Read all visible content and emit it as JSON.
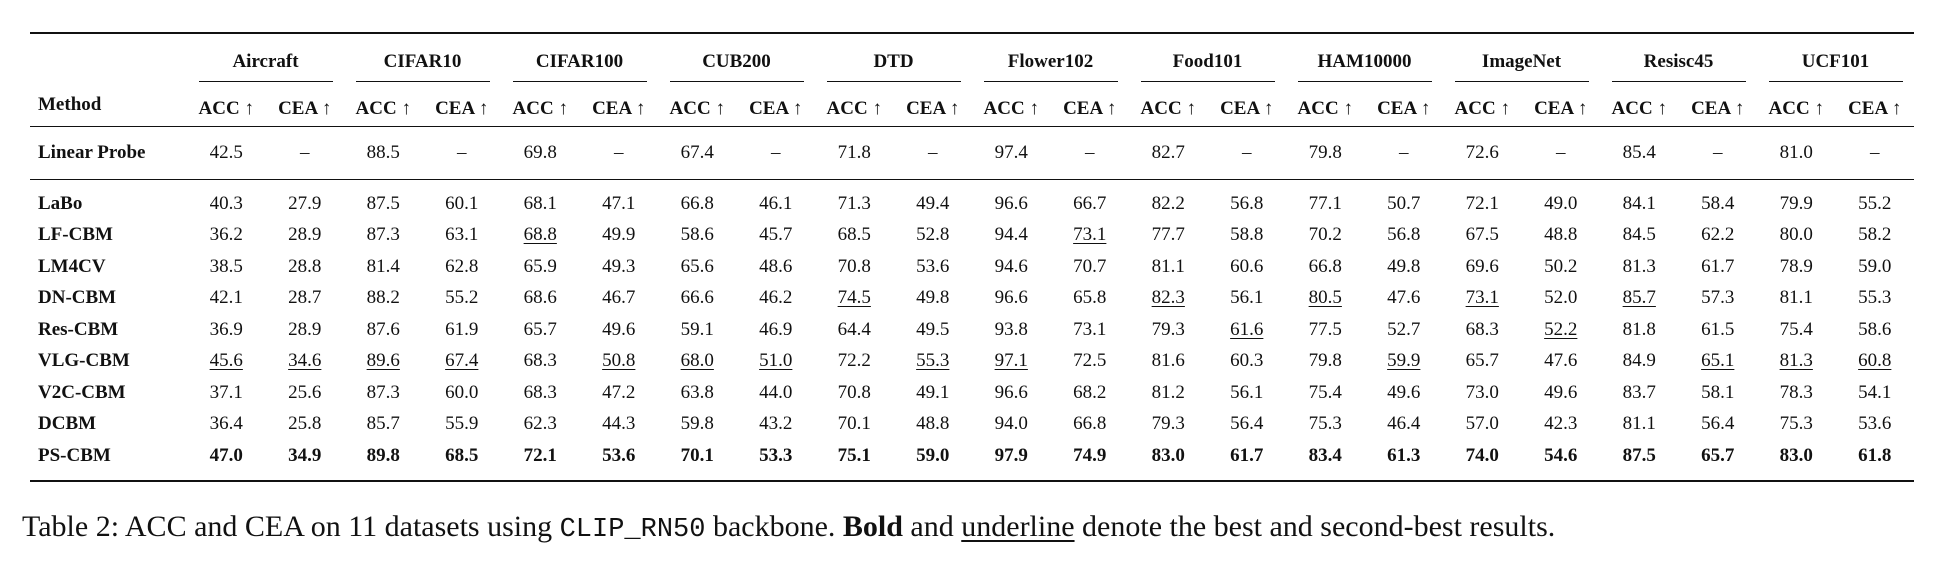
{
  "table": {
    "method_header": "Method",
    "datasets": [
      "Aircraft",
      "CIFAR10",
      "CIFAR100",
      "CUB200",
      "DTD",
      "Flower102",
      "Food101",
      "HAM10000",
      "ImageNet",
      "Resisc45",
      "UCF101"
    ],
    "metrics": [
      "ACC ↑",
      "CEA ↑"
    ],
    "baseline": {
      "method": "Linear Probe",
      "values": [
        "42.5",
        "–",
        "88.5",
        "–",
        "69.8",
        "–",
        "67.4",
        "–",
        "71.8",
        "–",
        "97.4",
        "–",
        "82.7",
        "–",
        "79.8",
        "–",
        "72.6",
        "–",
        "85.4",
        "–",
        "81.0",
        "–"
      ]
    },
    "rows": [
      {
        "method": "LaBo",
        "values": [
          "40.3",
          "27.9",
          "87.5",
          "60.1",
          "68.1",
          "47.1",
          "66.8",
          "46.1",
          "71.3",
          "49.4",
          "96.6",
          "66.7",
          "82.2",
          "56.8",
          "77.1",
          "50.7",
          "72.1",
          "49.0",
          "84.1",
          "58.4",
          "79.9",
          "55.2"
        ],
        "underline": []
      },
      {
        "method": "LF-CBM",
        "values": [
          "36.2",
          "28.9",
          "87.3",
          "63.1",
          "68.8",
          "49.9",
          "58.6",
          "45.7",
          "68.5",
          "52.8",
          "94.4",
          "73.1",
          "77.7",
          "58.8",
          "70.2",
          "56.8",
          "67.5",
          "48.8",
          "84.5",
          "62.2",
          "80.0",
          "58.2"
        ],
        "underline": [
          4,
          11
        ]
      },
      {
        "method": "LM4CV",
        "values": [
          "38.5",
          "28.8",
          "81.4",
          "62.8",
          "65.9",
          "49.3",
          "65.6",
          "48.6",
          "70.8",
          "53.6",
          "94.6",
          "70.7",
          "81.1",
          "60.6",
          "66.8",
          "49.8",
          "69.6",
          "50.2",
          "81.3",
          "61.7",
          "78.9",
          "59.0"
        ],
        "underline": []
      },
      {
        "method": "DN-CBM",
        "values": [
          "42.1",
          "28.7",
          "88.2",
          "55.2",
          "68.6",
          "46.7",
          "66.6",
          "46.2",
          "74.5",
          "49.8",
          "96.6",
          "65.8",
          "82.3",
          "56.1",
          "80.5",
          "47.6",
          "73.1",
          "52.0",
          "85.7",
          "57.3",
          "81.1",
          "55.3"
        ],
        "underline": [
          8,
          12,
          14,
          16,
          18
        ]
      },
      {
        "method": "Res-CBM",
        "values": [
          "36.9",
          "28.9",
          "87.6",
          "61.9",
          "65.7",
          "49.6",
          "59.1",
          "46.9",
          "64.4",
          "49.5",
          "93.8",
          "73.1",
          "79.3",
          "61.6",
          "77.5",
          "52.7",
          "68.3",
          "52.2",
          "81.8",
          "61.5",
          "75.4",
          "58.6"
        ],
        "underline": [
          13,
          17
        ]
      },
      {
        "method": "VLG-CBM",
        "values": [
          "45.6",
          "34.6",
          "89.6",
          "67.4",
          "68.3",
          "50.8",
          "68.0",
          "51.0",
          "72.2",
          "55.3",
          "97.1",
          "72.5",
          "81.6",
          "60.3",
          "79.8",
          "59.9",
          "65.7",
          "47.6",
          "84.9",
          "65.1",
          "81.3",
          "60.8"
        ],
        "underline": [
          0,
          1,
          2,
          3,
          5,
          6,
          7,
          9,
          10,
          15,
          19,
          20,
          21
        ]
      },
      {
        "method": "V2C-CBM",
        "values": [
          "37.1",
          "25.6",
          "87.3",
          "60.0",
          "68.3",
          "47.2",
          "63.8",
          "44.0",
          "70.8",
          "49.1",
          "96.6",
          "68.2",
          "81.2",
          "56.1",
          "75.4",
          "49.6",
          "73.0",
          "49.6",
          "83.7",
          "58.1",
          "78.3",
          "54.1"
        ],
        "underline": []
      },
      {
        "method": "DCBM",
        "values": [
          "36.4",
          "25.8",
          "85.7",
          "55.9",
          "62.3",
          "44.3",
          "59.8",
          "43.2",
          "70.1",
          "48.8",
          "94.0",
          "66.8",
          "79.3",
          "56.4",
          "75.3",
          "46.4",
          "57.0",
          "42.3",
          "81.1",
          "56.4",
          "75.3",
          "53.6"
        ],
        "underline": []
      }
    ],
    "best": {
      "method": "PS-CBM",
      "values": [
        "47.0",
        "34.9",
        "89.8",
        "68.5",
        "72.1",
        "53.6",
        "70.1",
        "53.3",
        "75.1",
        "59.0",
        "97.9",
        "74.9",
        "83.0",
        "61.7",
        "83.4",
        "61.3",
        "74.0",
        "54.6",
        "87.5",
        "65.7",
        "83.0",
        "61.8"
      ]
    }
  },
  "caption": {
    "label": "Table 2:",
    "part1": "ACC and CEA on 11 datasets using",
    "code": "CLIP_RN50",
    "part2": "backbone.",
    "bold_word": "Bold",
    "part3": "and",
    "underline_word": "underline",
    "part4": "denote the best and second-best results."
  }
}
